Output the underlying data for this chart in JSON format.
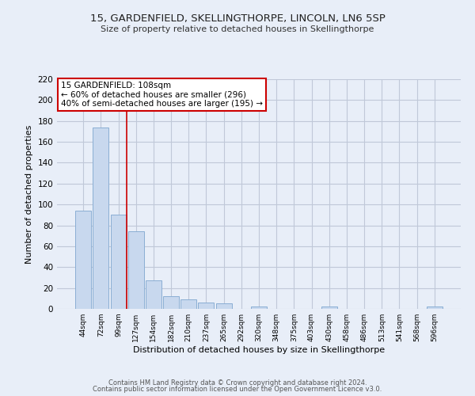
{
  "title1": "15, GARDENFIELD, SKELLINGTHORPE, LINCOLN, LN6 5SP",
  "title2": "Size of property relative to detached houses in Skellingthorpe",
  "xlabel": "Distribution of detached houses by size in Skellingthorpe",
  "ylabel": "Number of detached properties",
  "bin_labels": [
    "44sqm",
    "72sqm",
    "99sqm",
    "127sqm",
    "154sqm",
    "182sqm",
    "210sqm",
    "237sqm",
    "265sqm",
    "292sqm",
    "320sqm",
    "348sqm",
    "375sqm",
    "403sqm",
    "430sqm",
    "458sqm",
    "486sqm",
    "513sqm",
    "541sqm",
    "568sqm",
    "596sqm"
  ],
  "bar_values": [
    94,
    174,
    90,
    74,
    27,
    12,
    9,
    6,
    5,
    0,
    2,
    0,
    0,
    0,
    2,
    0,
    0,
    0,
    0,
    0,
    2
  ],
  "bar_color": "#c8d8ee",
  "bar_edge_color": "#8aaed4",
  "vline_x_idx": 2,
  "vline_color": "#cc0000",
  "annotation_title": "15 GARDENFIELD: 108sqm",
  "annotation_line1": "← 60% of detached houses are smaller (296)",
  "annotation_line2": "40% of semi-detached houses are larger (195) →",
  "annotation_box_color": "white",
  "annotation_box_edge": "#cc0000",
  "ylim": [
    0,
    220
  ],
  "yticks": [
    0,
    20,
    40,
    60,
    80,
    100,
    120,
    140,
    160,
    180,
    200,
    220
  ],
  "footer1": "Contains HM Land Registry data © Crown copyright and database right 2024.",
  "footer2": "Contains public sector information licensed under the Open Government Licence v3.0.",
  "bg_color": "#e8eef8",
  "plot_bg_color": "#e8eef8",
  "grid_color": "#c0c8d8"
}
